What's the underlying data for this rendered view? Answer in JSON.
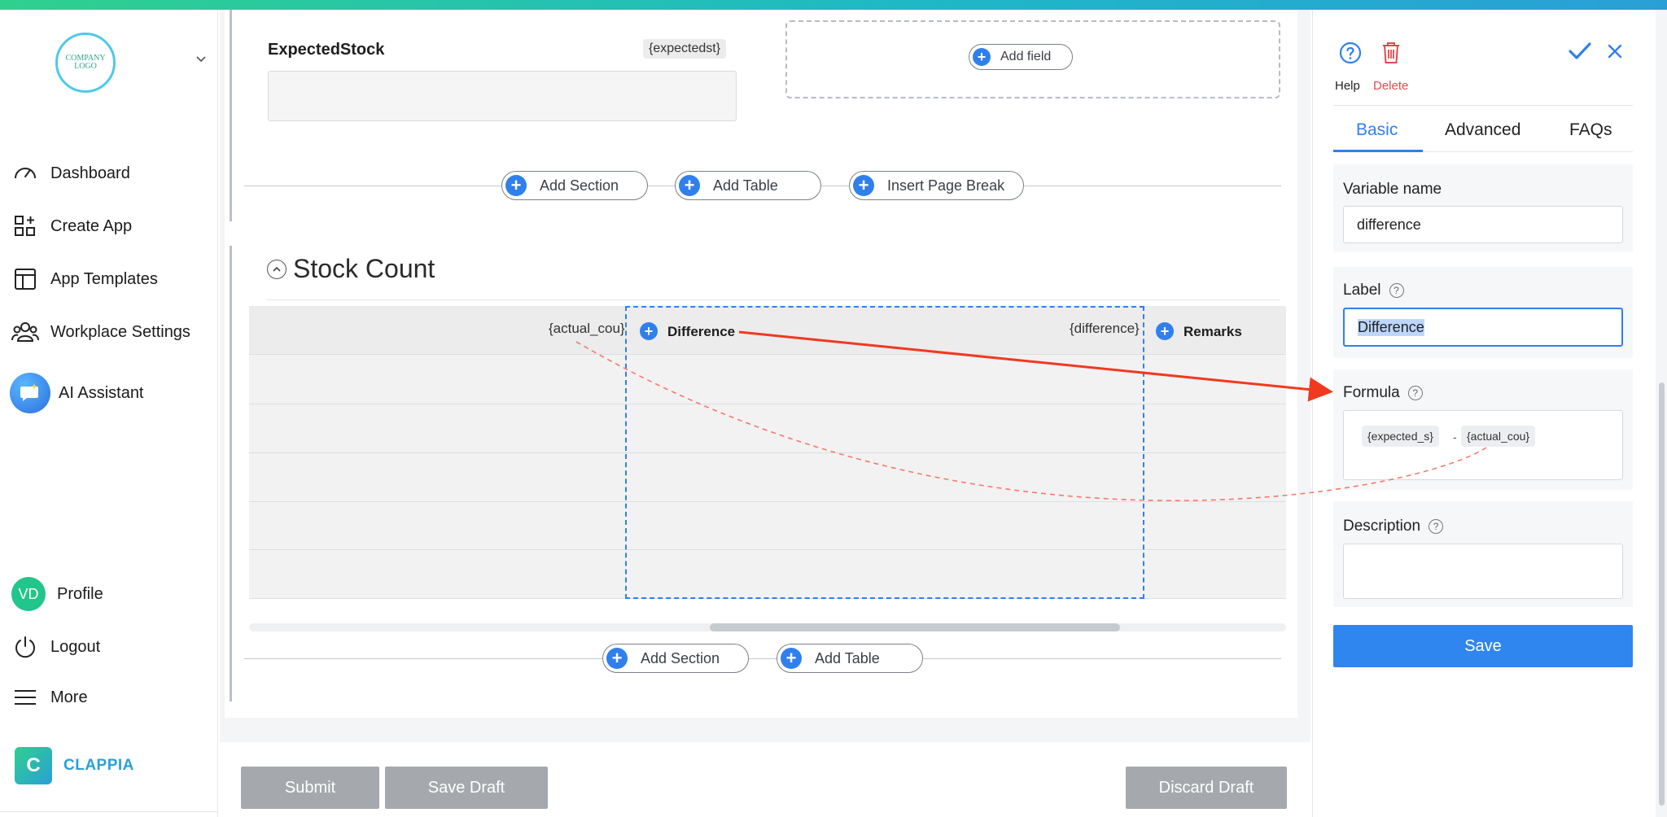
{
  "sidebar": {
    "logo_text": "COMPANY LOGO",
    "nav": [
      {
        "label": "Dashboard",
        "icon": "gauge-icon"
      },
      {
        "label": "Create App",
        "icon": "create-app-icon"
      },
      {
        "label": "App Templates",
        "icon": "templates-icon"
      },
      {
        "label": "Workplace Settings",
        "icon": "people-icon"
      },
      {
        "label": "AI Assistant",
        "icon": "ai-assistant-icon"
      }
    ],
    "profile": {
      "initials": "VD",
      "label": "Profile"
    },
    "logout_label": "Logout",
    "more_label": "More",
    "brand_name": "CLAPPIA",
    "brand_letter": "C"
  },
  "canvas": {
    "field": {
      "label": "ExpectedStock",
      "variable": "{expectedst}"
    },
    "add_field_label": "Add field",
    "top_actions": {
      "add_section": "Add Section",
      "add_table": "Add Table",
      "insert_page_break": "Insert Page Break"
    },
    "section_title": "Stock Count",
    "table": {
      "col_actual_var": "{actual_cou}",
      "col_difference_name": "Difference",
      "col_difference_var": "{difference}",
      "col_remarks_name": "Remarks"
    },
    "bottom_actions": {
      "add_section": "Add Section",
      "add_table": "Add Table"
    }
  },
  "footer": {
    "submit": "Submit",
    "save_draft": "Save Draft",
    "discard_draft": "Discard Draft"
  },
  "panel": {
    "help_label": "Help",
    "delete_label": "Delete",
    "tabs": [
      "Basic",
      "Advanced",
      "FAQs"
    ],
    "active_tab": "Basic",
    "variable_name": {
      "label": "Variable name",
      "value": "difference"
    },
    "label_field": {
      "label": "Label",
      "value": "Difference"
    },
    "formula": {
      "label": "Formula",
      "chip1": "{expected_s}",
      "operator": "-",
      "chip2": "{actual_cou}"
    },
    "description": {
      "label": "Description",
      "value": ""
    },
    "save_label": "Save"
  },
  "colors": {
    "accent": "#2f80ed",
    "delete": "#e5484d",
    "annotation": "#f03a1f",
    "brand": "#2aa0d8"
  }
}
